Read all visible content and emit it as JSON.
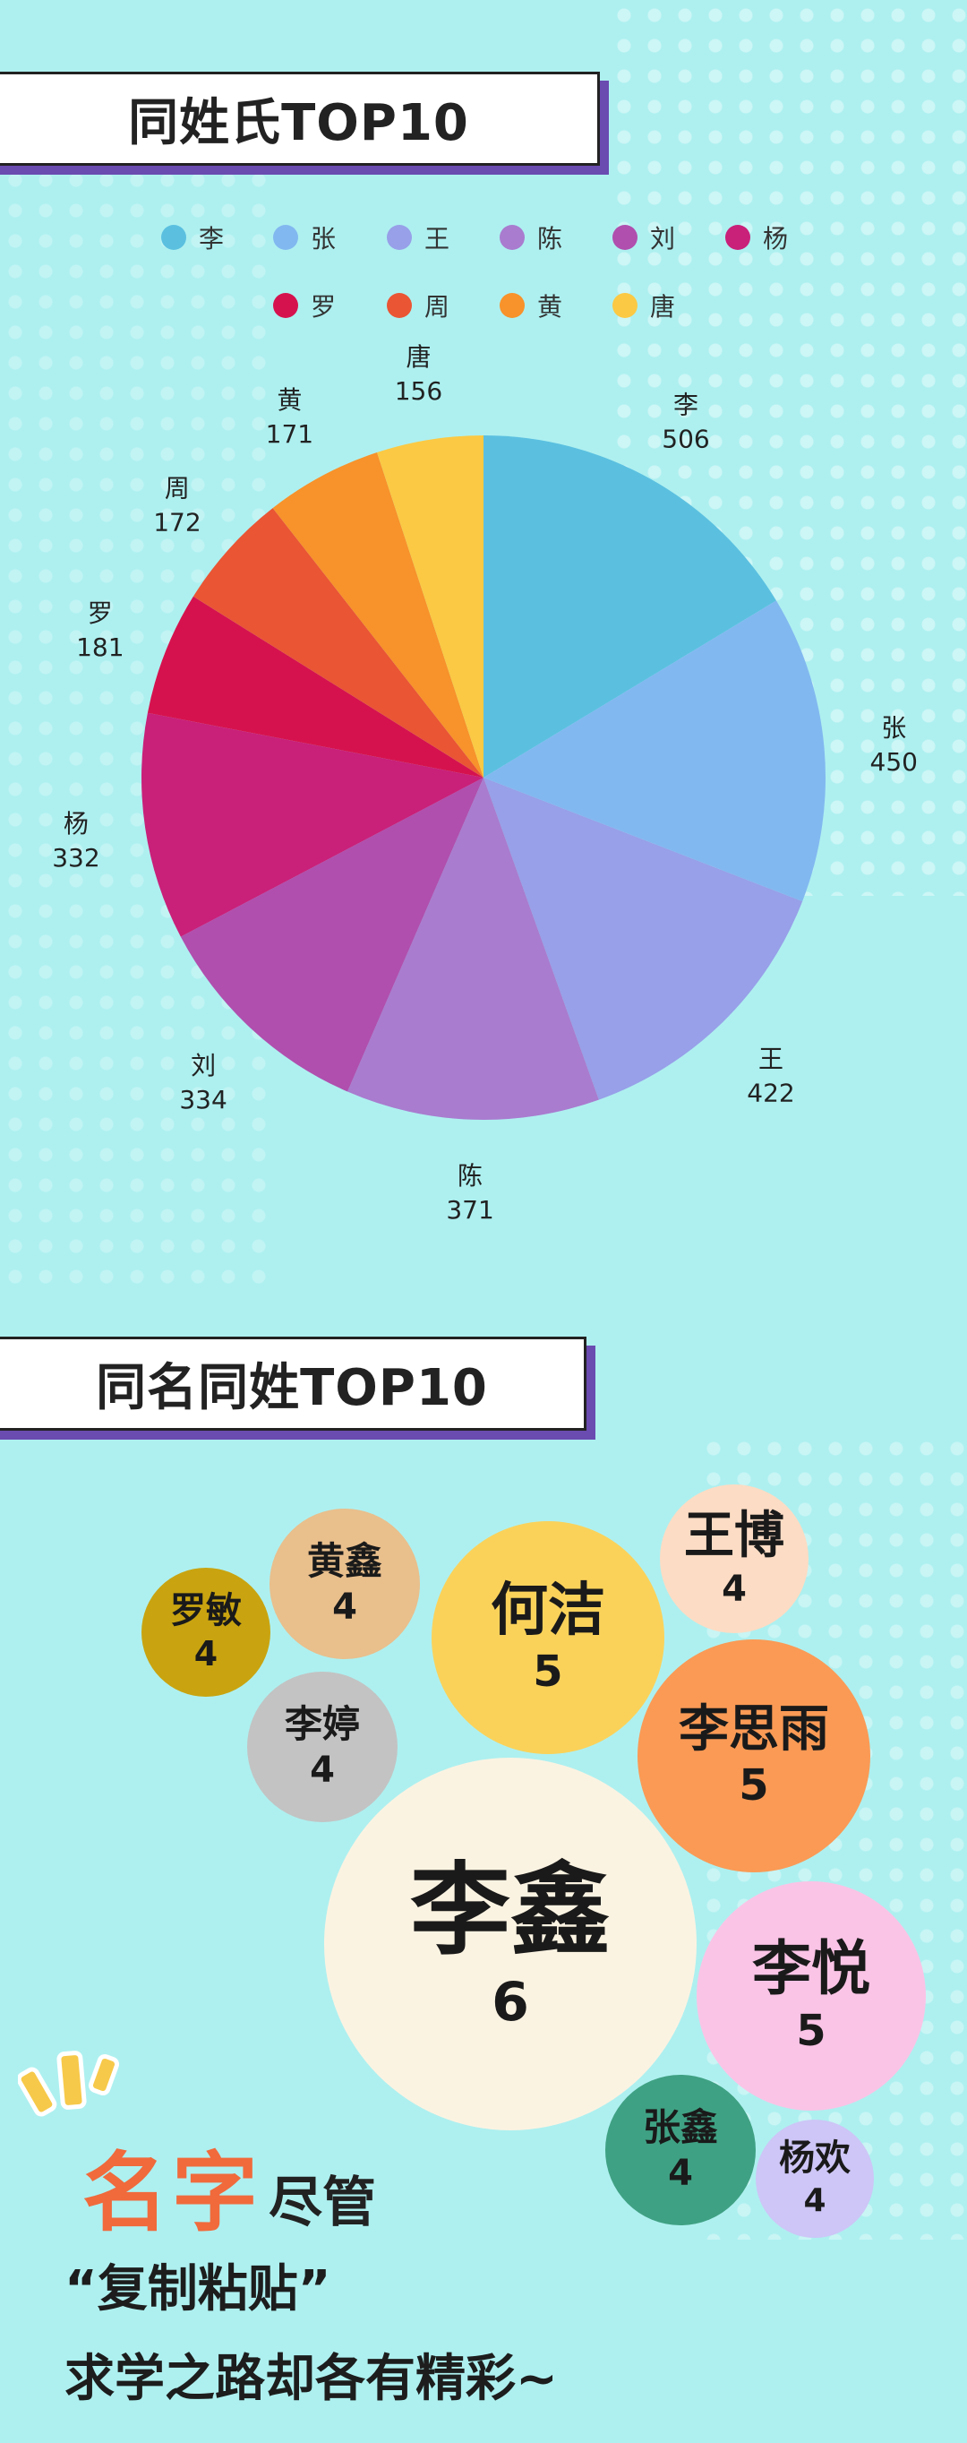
{
  "header1": {
    "title": "同姓氏TOP10"
  },
  "header2": {
    "title": "同名同姓TOP10"
  },
  "chart_data": [
    {
      "type": "pie",
      "title": "同姓氏TOP10",
      "legend_placement": "top",
      "categories": [
        "李",
        "张",
        "王",
        "陈",
        "刘",
        "杨",
        "罗",
        "周",
        "黄",
        "唐"
      ],
      "values": [
        506,
        450,
        422,
        371,
        334,
        332,
        181,
        172,
        171,
        156
      ],
      "colors": [
        "#5bc0e0",
        "#82b8f0",
        "#97a0e8",
        "#a97ccf",
        "#b04fae",
        "#c9207a",
        "#d6124e",
        "#ea5534",
        "#f8922a",
        "#fbc944"
      ]
    },
    {
      "type": "bubble",
      "title": "同名同姓TOP10",
      "categories": [
        "李鑫",
        "何洁",
        "李思雨",
        "李悦",
        "王博",
        "黄鑫",
        "罗敏",
        "李婷",
        "张鑫",
        "杨欢"
      ],
      "values": [
        6,
        5,
        5,
        5,
        4,
        4,
        4,
        4,
        4,
        4
      ],
      "colors": [
        "#fbf3e2",
        "#fad25a",
        "#fa9a55",
        "#fac4e6",
        "#fcdcc4",
        "#e9bf8c",
        "#c9a410",
        "#c3c3c3",
        "#3fa183",
        "#cdc6f6"
      ]
    }
  ],
  "footer": {
    "name_word": "名字",
    "jinguan": "尽管",
    "line1": "“复制粘贴”",
    "line2": "求学之路却各有精彩~"
  }
}
